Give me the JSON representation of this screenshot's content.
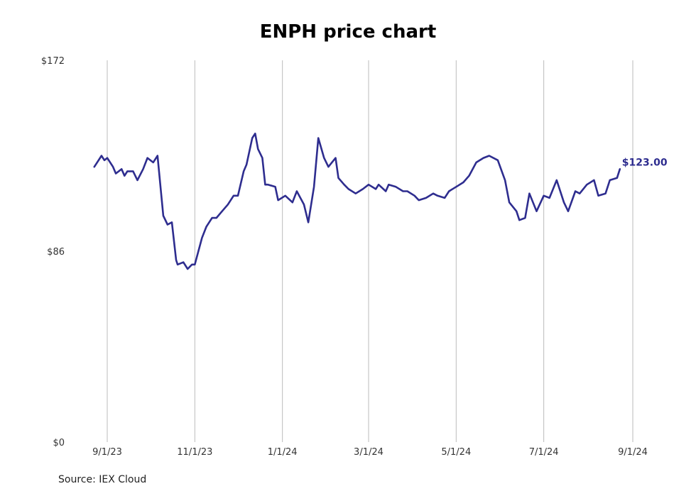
{
  "title": "ENPH price chart",
  "source": "Source: IEX Cloud",
  "colors": {
    "line": "#2e2d8f",
    "grid": "#bbbbbb",
    "text": "#333333"
  },
  "chart_data": {
    "type": "line",
    "title": "ENPH price chart",
    "xlabel": "",
    "ylabel": "",
    "grid": "vertical",
    "ylim": [
      0,
      172
    ],
    "y_ticks": [
      {
        "value": 0,
        "label": "$0"
      },
      {
        "value": 86,
        "label": "$86"
      },
      {
        "value": 172,
        "label": "$172"
      }
    ],
    "x_ticks": [
      {
        "value": "2023-09-01",
        "label": "9/1/23"
      },
      {
        "value": "2023-11-01",
        "label": "11/1/23"
      },
      {
        "value": "2024-01-01",
        "label": "1/1/24"
      },
      {
        "value": "2024-03-01",
        "label": "3/1/24"
      },
      {
        "value": "2024-05-01",
        "label": "5/1/24"
      },
      {
        "value": "2024-07-01",
        "label": "7/1/24"
      },
      {
        "value": "2024-09-01",
        "label": "9/1/24"
      }
    ],
    "last_value_label": "$123.00",
    "series": [
      {
        "x": [
          "2023-08-23",
          "2023-08-25",
          "2023-08-28",
          "2023-08-30",
          "2023-09-01",
          "2023-09-05",
          "2023-09-07",
          "2023-09-11",
          "2023-09-13",
          "2023-09-15",
          "2023-09-19",
          "2023-09-22",
          "2023-09-26",
          "2023-09-29",
          "2023-10-03",
          "2023-10-06",
          "2023-10-10",
          "2023-10-13",
          "2023-10-16",
          "2023-10-19",
          "2023-10-20",
          "2023-10-24",
          "2023-10-27",
          "2023-10-30",
          "2023-11-01",
          "2023-11-06",
          "2023-11-09",
          "2023-11-13",
          "2023-11-16",
          "2023-11-20",
          "2023-11-24",
          "2023-11-28",
          "2023-12-01",
          "2023-12-05",
          "2023-12-07",
          "2023-12-11",
          "2023-12-13",
          "2023-12-15",
          "2023-12-18",
          "2023-12-20",
          "2023-12-22",
          "2023-12-27",
          "2023-12-29",
          "2024-01-03",
          "2024-01-08",
          "2024-01-11",
          "2024-01-16",
          "2024-01-19",
          "2024-01-23",
          "2024-01-26",
          "2024-01-30",
          "2024-02-02",
          "2024-02-07",
          "2024-02-09",
          "2024-02-13",
          "2024-02-16",
          "2024-02-21",
          "2024-02-26",
          "2024-03-01",
          "2024-03-06",
          "2024-03-08",
          "2024-03-13",
          "2024-03-15",
          "2024-03-20",
          "2024-03-25",
          "2024-03-28",
          "2024-04-02",
          "2024-04-05",
          "2024-04-10",
          "2024-04-15",
          "2024-04-18",
          "2024-04-23",
          "2024-04-26",
          "2024-05-01",
          "2024-05-06",
          "2024-05-10",
          "2024-05-15",
          "2024-05-20",
          "2024-05-24",
          "2024-05-30",
          "2024-06-04",
          "2024-06-07",
          "2024-06-12",
          "2024-06-14",
          "2024-06-18",
          "2024-06-21",
          "2024-06-26",
          "2024-07-01",
          "2024-07-05",
          "2024-07-10",
          "2024-07-15",
          "2024-07-18",
          "2024-07-23",
          "2024-07-26",
          "2024-07-31",
          "2024-08-05",
          "2024-08-08",
          "2024-08-13",
          "2024-08-16",
          "2024-08-21",
          "2024-08-23"
        ],
        "y": [
          124,
          126,
          129,
          127,
          128,
          124,
          121,
          123,
          120,
          122,
          122,
          118,
          123,
          128,
          126,
          129,
          102,
          98,
          99,
          82,
          80,
          81,
          78,
          80,
          80,
          92,
          97,
          101,
          101,
          104,
          107,
          111,
          111,
          122,
          125,
          137,
          139,
          132,
          128,
          116,
          116,
          115,
          109,
          111,
          108,
          113,
          107,
          99,
          115,
          137,
          128,
          124,
          128,
          119,
          116,
          114,
          112,
          114,
          116,
          114,
          116,
          113,
          116,
          115,
          113,
          113,
          111,
          109,
          110,
          112,
          111,
          110,
          113,
          115,
          117,
          120,
          126,
          128,
          129,
          127,
          118,
          108,
          104,
          100,
          101,
          112,
          104,
          111,
          110,
          118,
          108,
          104,
          113,
          112,
          116,
          118,
          111,
          112,
          118,
          119,
          123
        ]
      }
    ]
  }
}
